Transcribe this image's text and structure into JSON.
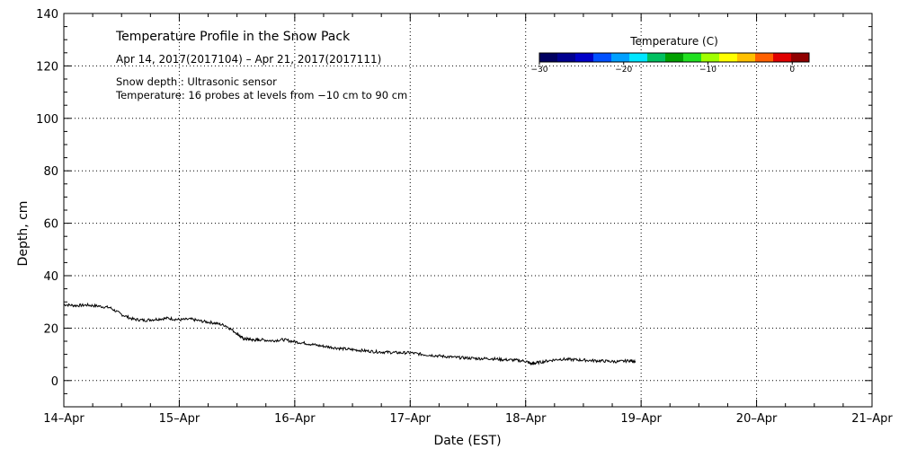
{
  "chart_data": {
    "type": "line",
    "title": "Temperature Profile in the Snow Pack",
    "subtitle": "Apr 14, 2017(2017104) – Apr 21, 2017(2017111)",
    "annotations": [
      "Snow depth : Ultrasonic sensor",
      "Temperature: 16 probes at levels from −10 cm to 90 cm"
    ],
    "xlabel": "Date (EST)",
    "ylabel": "Depth, cm",
    "xlim": [
      0,
      7
    ],
    "ylim": [
      -10,
      140
    ],
    "grid": true,
    "x_ticks": [
      {
        "value": 0,
        "label": "14–Apr"
      },
      {
        "value": 1,
        "label": "15–Apr"
      },
      {
        "value": 2,
        "label": "16–Apr"
      },
      {
        "value": 3,
        "label": "17–Apr"
      },
      {
        "value": 4,
        "label": "18–Apr"
      },
      {
        "value": 5,
        "label": "19–Apr"
      },
      {
        "value": 6,
        "label": "20–Apr"
      },
      {
        "value": 7,
        "label": "21–Apr"
      }
    ],
    "y_ticks": [
      0,
      20,
      40,
      60,
      80,
      100,
      120,
      140
    ],
    "series": [
      {
        "name": "Snow depth",
        "color": "#000000",
        "x": [
          0,
          0.1,
          0.2,
          0.3,
          0.4,
          0.5,
          0.6,
          0.7,
          0.8,
          0.9,
          1.0,
          1.1,
          1.2,
          1.3,
          1.4,
          1.5,
          1.55,
          1.6,
          1.65,
          1.7,
          1.8,
          1.9,
          2.0,
          2.1,
          2.2,
          2.3,
          2.4,
          2.5,
          2.6,
          2.7,
          2.8,
          2.9,
          3.0,
          3.1,
          3.2,
          3.3,
          3.4,
          3.5,
          3.6,
          3.7,
          3.8,
          3.9,
          4.0,
          4.05,
          4.1,
          4.2,
          4.3,
          4.4,
          4.5,
          4.6,
          4.7,
          4.8,
          4.9,
          4.95
        ],
        "values": [
          29.0,
          28.6,
          28.8,
          28.4,
          27.8,
          25.2,
          23.4,
          23.0,
          23.4,
          23.8,
          23.2,
          23.4,
          22.6,
          22.0,
          21.0,
          18.0,
          16.0,
          15.8,
          15.4,
          15.6,
          15.2,
          15.6,
          14.8,
          14.2,
          13.4,
          12.8,
          12.2,
          11.8,
          11.4,
          11.0,
          10.8,
          10.6,
          10.6,
          10.0,
          9.6,
          9.2,
          8.8,
          8.6,
          8.4,
          8.4,
          8.0,
          7.8,
          7.4,
          6.4,
          6.8,
          7.6,
          8.2,
          8.0,
          7.8,
          7.6,
          7.4,
          7.2,
          7.6,
          7.4
        ]
      }
    ],
    "colorbar": {
      "title": "Temperature (C)",
      "range": [
        -30,
        2
      ],
      "ticks": [
        {
          "value": -30,
          "label": "−30"
        },
        {
          "value": -20,
          "label": "−20"
        },
        {
          "value": -10,
          "label": "−10"
        },
        {
          "value": 0,
          "label": "0"
        }
      ],
      "colors": [
        "#000060",
        "#000090",
        "#0000c8",
        "#0050ff",
        "#00a0ff",
        "#00e6ff",
        "#00c060",
        "#00a000",
        "#20e020",
        "#a0ff00",
        "#ffff00",
        "#ffc000",
        "#ff6000",
        "#e00000",
        "#900000"
      ]
    }
  }
}
